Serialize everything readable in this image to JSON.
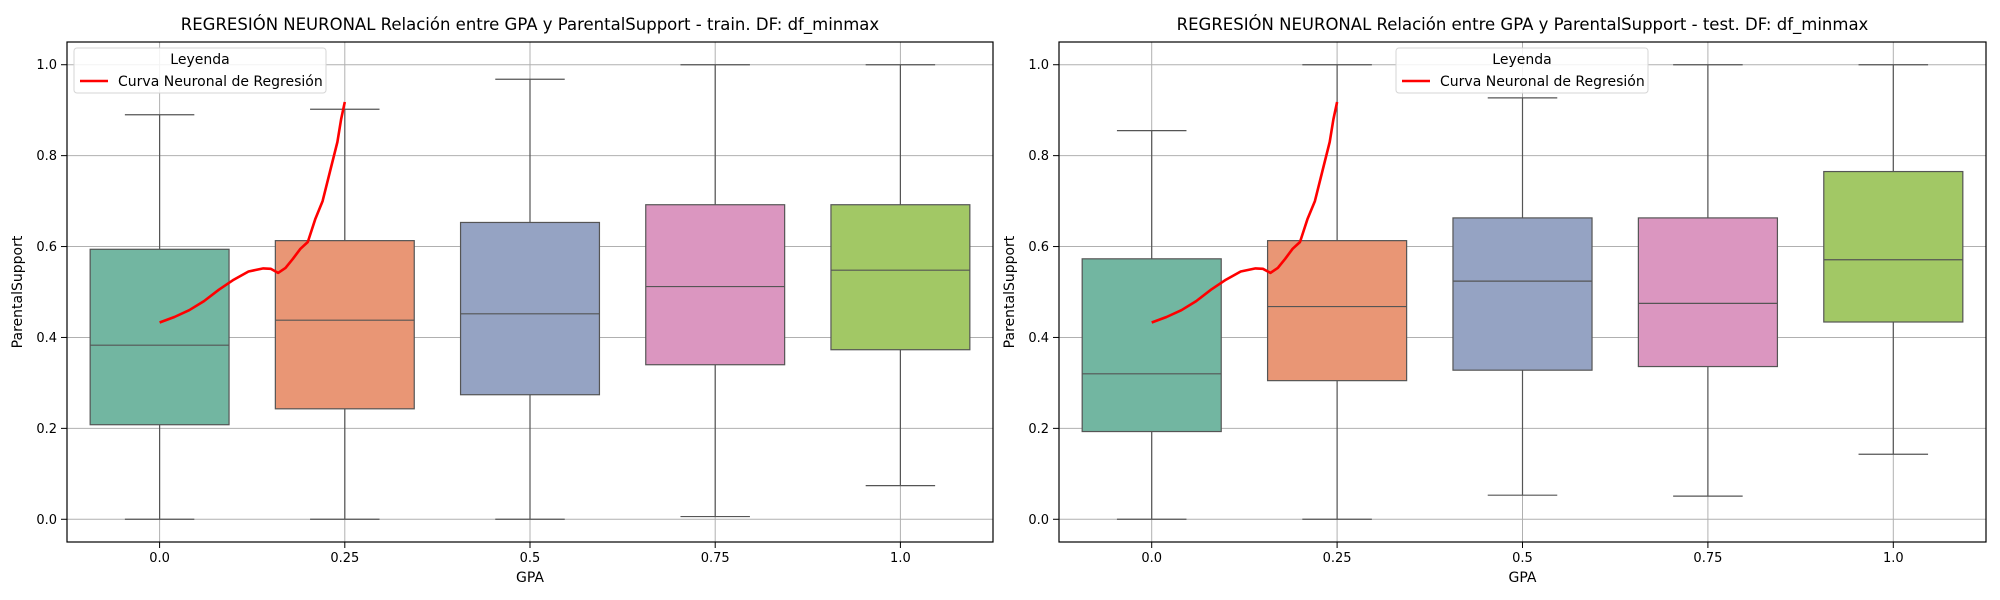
{
  "chart_data": [
    {
      "type": "box",
      "title": "REGRESIÓN NEURONAL Relación entre GPA y ParentalSupport - train. DF: df_minmax",
      "xlabel": "GPA",
      "ylabel": "ParentalSupport",
      "categories": [
        "0.0",
        "0.25",
        "0.5",
        "0.75",
        "1.0"
      ],
      "ylim": [
        -0.05,
        1.05
      ],
      "yticks": [
        "0.0",
        "0.2",
        "0.4",
        "0.6",
        "0.8",
        "1.0"
      ],
      "grid": true,
      "legend": {
        "title": "Leyenda",
        "placement": "top-left",
        "entries": [
          "Curva Neuronal de Regresión"
        ]
      },
      "box_colors": [
        "#72b6a1",
        "#e99675",
        "#95a3c3",
        "#db96c0",
        "#a2c865"
      ],
      "curve_color": "#ff0000",
      "boxes": [
        {
          "category": "0.0",
          "whislo": 0.0,
          "q1": 0.208,
          "med": 0.383,
          "q3": 0.594,
          "whishi": 0.89
        },
        {
          "category": "0.25",
          "whislo": 0.0,
          "q1": 0.243,
          "med": 0.438,
          "q3": 0.613,
          "whishi": 0.902
        },
        {
          "category": "0.5",
          "whislo": 0.0,
          "q1": 0.274,
          "med": 0.452,
          "q3": 0.653,
          "whishi": 0.968
        },
        {
          "category": "0.75",
          "whislo": 0.006,
          "q1": 0.34,
          "med": 0.512,
          "q3": 0.692,
          "whishi": 1.0
        },
        {
          "category": "1.0",
          "whislo": 0.074,
          "q1": 0.373,
          "med": 0.548,
          "q3": 0.692,
          "whishi": 1.0
        }
      ],
      "curve": {
        "name": "Curva Neuronal de Regresión",
        "x": [
          0.0,
          0.02,
          0.04,
          0.06,
          0.08,
          0.1,
          0.12,
          0.14,
          0.15,
          0.16,
          0.17,
          0.18,
          0.19,
          0.2,
          0.21,
          0.22,
          0.23,
          0.24,
          0.245,
          0.25
        ],
        "y": [
          0.433,
          0.445,
          0.46,
          0.48,
          0.505,
          0.527,
          0.545,
          0.552,
          0.551,
          0.542,
          0.553,
          0.573,
          0.595,
          0.61,
          0.66,
          0.7,
          0.765,
          0.83,
          0.88,
          0.918
        ]
      }
    },
    {
      "type": "box",
      "title": "REGRESIÓN NEURONAL Relación entre GPA y ParentalSupport - test. DF: df_minmax",
      "xlabel": "GPA",
      "ylabel": "ParentalSupport",
      "categories": [
        "0.0",
        "0.25",
        "0.5",
        "0.75",
        "1.0"
      ],
      "ylim": [
        -0.05,
        1.05
      ],
      "yticks": [
        "0.0",
        "0.2",
        "0.4",
        "0.6",
        "0.8",
        "1.0"
      ],
      "grid": true,
      "legend": {
        "title": "Leyenda",
        "placement": "top-center",
        "entries": [
          "Curva Neuronal de Regresión"
        ]
      },
      "box_colors": [
        "#72b6a1",
        "#e99675",
        "#95a3c3",
        "#db96c0",
        "#a2c865"
      ],
      "curve_color": "#ff0000",
      "boxes": [
        {
          "category": "0.0",
          "whislo": 0.0,
          "q1": 0.193,
          "med": 0.32,
          "q3": 0.573,
          "whishi": 0.855
        },
        {
          "category": "0.25",
          "whislo": 0.0,
          "q1": 0.305,
          "med": 0.468,
          "q3": 0.613,
          "whishi": 1.0
        },
        {
          "category": "0.5",
          "whislo": 0.053,
          "q1": 0.328,
          "med": 0.524,
          "q3": 0.663,
          "whishi": 0.927
        },
        {
          "category": "0.75",
          "whislo": 0.051,
          "q1": 0.336,
          "med": 0.475,
          "q3": 0.663,
          "whishi": 1.0
        },
        {
          "category": "1.0",
          "whislo": 0.143,
          "q1": 0.434,
          "med": 0.571,
          "q3": 0.765,
          "whishi": 1.0
        }
      ],
      "curve": {
        "name": "Curva Neuronal de Regresión",
        "x": [
          0.0,
          0.02,
          0.04,
          0.06,
          0.08,
          0.1,
          0.12,
          0.14,
          0.15,
          0.16,
          0.17,
          0.18,
          0.19,
          0.2,
          0.21,
          0.22,
          0.23,
          0.24,
          0.245,
          0.25
        ],
        "y": [
          0.433,
          0.445,
          0.46,
          0.48,
          0.505,
          0.527,
          0.545,
          0.552,
          0.551,
          0.542,
          0.553,
          0.573,
          0.595,
          0.61,
          0.66,
          0.7,
          0.765,
          0.83,
          0.88,
          0.918
        ]
      }
    }
  ]
}
